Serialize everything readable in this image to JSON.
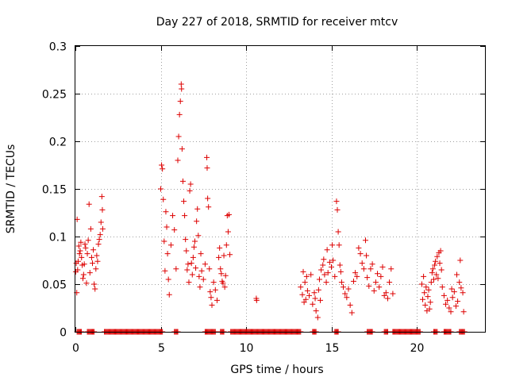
{
  "chart_data": {
    "type": "scatter",
    "title": "Day 227 of 2018, SRMTID for receiver mtcv",
    "xlabel": "GPS time / hours",
    "ylabel": "SRMTID / TECUs",
    "xlim": [
      0,
      24
    ],
    "ylim": [
      0,
      0.3
    ],
    "x_ticks": [
      0,
      5,
      10,
      15,
      20
    ],
    "x_tick_labels": [
      "0",
      "5",
      "10",
      "15",
      "20"
    ],
    "y_ticks": [
      0,
      0.05,
      0.1,
      0.15,
      0.2,
      0.25,
      0.3
    ],
    "y_tick_labels": [
      "0",
      "0.05",
      "0.1",
      "0.15",
      "0.2",
      "0.25",
      "0.3"
    ],
    "grid": true,
    "marker": "+",
    "color": "#dd0000",
    "series": [
      {
        "name": "SRMTID",
        "points": [
          [
            0.02,
            0.063
          ],
          [
            0.05,
            0.072
          ],
          [
            0.08,
            0.041
          ],
          [
            0.1,
            0.118
          ],
          [
            0.13,
            0.065
          ],
          [
            0.16,
            0.074
          ],
          [
            0.2,
            0.09
          ],
          [
            0.24,
            0.082
          ],
          [
            0.28,
            0.085
          ],
          [
            0.32,
            0.094
          ],
          [
            0.36,
            0.078
          ],
          [
            0.4,
            0.07
          ],
          [
            0.44,
            0.056
          ],
          [
            0.48,
            0.06
          ],
          [
            0.52,
            0.071
          ],
          [
            0.56,
            0.092
          ],
          [
            0.6,
            0.088
          ],
          [
            0.65,
            0.051
          ],
          [
            0.7,
            0.082
          ],
          [
            0.75,
            0.096
          ],
          [
            0.8,
            0.134
          ],
          [
            0.85,
            0.062
          ],
          [
            0.9,
            0.108
          ],
          [
            0.95,
            0.078
          ],
          [
            1.0,
            0.072
          ],
          [
            1.05,
            0.086
          ],
          [
            1.1,
            0.05
          ],
          [
            1.15,
            0.045
          ],
          [
            1.2,
            0.066
          ],
          [
            1.25,
            0.08
          ],
          [
            1.3,
            0.074
          ],
          [
            1.35,
            0.092
          ],
          [
            1.4,
            0.097
          ],
          [
            1.45,
            0.102
          ],
          [
            1.5,
            0.115
          ],
          [
            1.55,
            0.142
          ],
          [
            1.58,
            0.128
          ],
          [
            1.6,
            0.108
          ],
          [
            5.0,
            0.15
          ],
          [
            5.05,
            0.175
          ],
          [
            5.1,
            0.171
          ],
          [
            5.15,
            0.139
          ],
          [
            5.2,
            0.095
          ],
          [
            5.25,
            0.064
          ],
          [
            5.3,
            0.126
          ],
          [
            5.35,
            0.11
          ],
          [
            5.4,
            0.082
          ],
          [
            5.45,
            0.055
          ],
          [
            5.5,
            0.039
          ],
          [
            5.6,
            0.091
          ],
          [
            5.7,
            0.122
          ],
          [
            5.8,
            0.107
          ],
          [
            5.9,
            0.066
          ],
          [
            6.0,
            0.18
          ],
          [
            6.05,
            0.205
          ],
          [
            6.1,
            0.228
          ],
          [
            6.15,
            0.242
          ],
          [
            6.2,
            0.26
          ],
          [
            6.22,
            0.255
          ],
          [
            6.25,
            0.192
          ],
          [
            6.3,
            0.158
          ],
          [
            6.35,
            0.137
          ],
          [
            6.4,
            0.122
          ],
          [
            6.45,
            0.097
          ],
          [
            6.5,
            0.085
          ],
          [
            6.55,
            0.065
          ],
          [
            6.6,
            0.071
          ],
          [
            6.65,
            0.052
          ],
          [
            6.7,
            0.148
          ],
          [
            6.75,
            0.155
          ],
          [
            6.8,
            0.072
          ],
          [
            6.85,
            0.06
          ],
          [
            6.9,
            0.078
          ],
          [
            6.95,
            0.089
          ],
          [
            7.0,
            0.095
          ],
          [
            7.05,
            0.067
          ],
          [
            7.1,
            0.116
          ],
          [
            7.15,
            0.129
          ],
          [
            7.2,
            0.101
          ],
          [
            7.25,
            0.058
          ],
          [
            7.3,
            0.047
          ],
          [
            7.35,
            0.082
          ],
          [
            7.4,
            0.064
          ],
          [
            7.5,
            0.055
          ],
          [
            7.6,
            0.071
          ],
          [
            7.7,
            0.183
          ],
          [
            7.72,
            0.172
          ],
          [
            7.75,
            0.14
          ],
          [
            7.8,
            0.131
          ],
          [
            7.85,
            0.066
          ],
          [
            7.9,
            0.042
          ],
          [
            7.95,
            0.036
          ],
          [
            8.0,
            0.028
          ],
          [
            8.1,
            0.052
          ],
          [
            8.2,
            0.044
          ],
          [
            8.3,
            0.033
          ],
          [
            8.4,
            0.078
          ],
          [
            8.45,
            0.088
          ],
          [
            8.5,
            0.066
          ],
          [
            8.55,
            0.061
          ],
          [
            8.6,
            0.053
          ],
          [
            8.65,
            0.051
          ],
          [
            8.7,
            0.08
          ],
          [
            8.75,
            0.047
          ],
          [
            8.8,
            0.059
          ],
          [
            8.85,
            0.091
          ],
          [
            8.9,
            0.122
          ],
          [
            8.95,
            0.105
          ],
          [
            9.0,
            0.123
          ],
          [
            9.05,
            0.081
          ],
          [
            10.6,
            0.035
          ],
          [
            10.62,
            0.033
          ],
          [
            13.2,
            0.047
          ],
          [
            13.3,
            0.039
          ],
          [
            13.35,
            0.063
          ],
          [
            13.4,
            0.031
          ],
          [
            13.45,
            0.052
          ],
          [
            13.5,
            0.034
          ],
          [
            13.55,
            0.058
          ],
          [
            13.6,
            0.043
          ],
          [
            13.7,
            0.038
          ],
          [
            13.8,
            0.06
          ],
          [
            13.9,
            0.029
          ],
          [
            14.0,
            0.041
          ],
          [
            14.05,
            0.035
          ],
          [
            14.1,
            0.022
          ],
          [
            14.2,
            0.015
          ],
          [
            14.25,
            0.044
          ],
          [
            14.3,
            0.055
          ],
          [
            14.35,
            0.033
          ],
          [
            14.4,
            0.065
          ],
          [
            14.5,
            0.07
          ],
          [
            14.55,
            0.076
          ],
          [
            14.6,
            0.06
          ],
          [
            14.7,
            0.052
          ],
          [
            14.75,
            0.086
          ],
          [
            14.8,
            0.062
          ],
          [
            14.9,
            0.073
          ],
          [
            15.0,
            0.068
          ],
          [
            15.05,
            0.091
          ],
          [
            15.1,
            0.075
          ],
          [
            15.2,
            0.058
          ],
          [
            15.3,
            0.137
          ],
          [
            15.35,
            0.128
          ],
          [
            15.4,
            0.105
          ],
          [
            15.45,
            0.091
          ],
          [
            15.5,
            0.07
          ],
          [
            15.55,
            0.063
          ],
          [
            15.6,
            0.052
          ],
          [
            15.7,
            0.047
          ],
          [
            15.8,
            0.04
          ],
          [
            15.9,
            0.036
          ],
          [
            16.0,
            0.045
          ],
          [
            16.1,
            0.028
          ],
          [
            16.2,
            0.02
          ],
          [
            16.3,
            0.053
          ],
          [
            16.4,
            0.062
          ],
          [
            16.5,
            0.058
          ],
          [
            16.6,
            0.088
          ],
          [
            16.7,
            0.082
          ],
          [
            16.8,
            0.072
          ],
          [
            16.9,
            0.066
          ],
          [
            17.0,
            0.096
          ],
          [
            17.05,
            0.08
          ],
          [
            17.1,
            0.057
          ],
          [
            17.2,
            0.048
          ],
          [
            17.3,
            0.066
          ],
          [
            17.4,
            0.071
          ],
          [
            17.5,
            0.043
          ],
          [
            17.6,
            0.052
          ],
          [
            17.7,
            0.061
          ],
          [
            17.8,
            0.047
          ],
          [
            17.9,
            0.058
          ],
          [
            18.0,
            0.068
          ],
          [
            18.1,
            0.038
          ],
          [
            18.2,
            0.041
          ],
          [
            18.3,
            0.035
          ],
          [
            18.4,
            0.052
          ],
          [
            18.5,
            0.066
          ],
          [
            18.6,
            0.04
          ],
          [
            20.3,
            0.05
          ],
          [
            20.35,
            0.034
          ],
          [
            20.4,
            0.058
          ],
          [
            20.45,
            0.041
          ],
          [
            20.5,
            0.028
          ],
          [
            20.55,
            0.047
          ],
          [
            20.6,
            0.022
          ],
          [
            20.65,
            0.037
          ],
          [
            20.7,
            0.044
          ],
          [
            20.75,
            0.024
          ],
          [
            20.8,
            0.031
          ],
          [
            20.85,
            0.052
          ],
          [
            20.9,
            0.062
          ],
          [
            20.95,
            0.066
          ],
          [
            21.0,
            0.055
          ],
          [
            21.05,
            0.07
          ],
          [
            21.1,
            0.074
          ],
          [
            21.15,
            0.06
          ],
          [
            21.2,
            0.079
          ],
          [
            21.25,
            0.056
          ],
          [
            21.3,
            0.083
          ],
          [
            21.35,
            0.072
          ],
          [
            21.4,
            0.085
          ],
          [
            21.45,
            0.065
          ],
          [
            21.5,
            0.047
          ],
          [
            21.6,
            0.038
          ],
          [
            21.7,
            0.029
          ],
          [
            21.8,
            0.033
          ],
          [
            21.9,
            0.025
          ],
          [
            22.0,
            0.021
          ],
          [
            22.05,
            0.045
          ],
          [
            22.1,
            0.036
          ],
          [
            22.2,
            0.042
          ],
          [
            22.3,
            0.027
          ],
          [
            22.35,
            0.06
          ],
          [
            22.4,
            0.032
          ],
          [
            22.5,
            0.052
          ],
          [
            22.55,
            0.075
          ],
          [
            22.6,
            0.046
          ],
          [
            22.7,
            0.041
          ],
          [
            22.75,
            0.021
          ]
        ],
        "zero_ranges": [
          [
            0.1,
            0.35
          ],
          [
            0.7,
            1.1
          ],
          [
            1.7,
            5.1
          ],
          [
            5.8,
            6.0
          ],
          [
            7.6,
            8.2
          ],
          [
            8.5,
            8.7
          ],
          [
            9.1,
            13.2
          ],
          [
            13.9,
            14.1
          ],
          [
            15.2,
            15.4
          ],
          [
            17.1,
            17.4
          ],
          [
            18.1,
            18.3
          ],
          [
            18.6,
            20.2
          ],
          [
            21.0,
            21.2
          ],
          [
            21.6,
            22.0
          ],
          [
            22.5,
            22.8
          ]
        ]
      }
    ]
  }
}
